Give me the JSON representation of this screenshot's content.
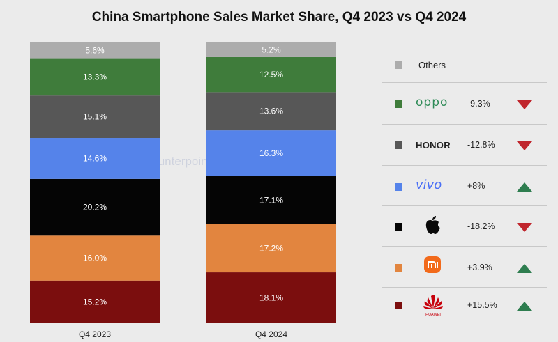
{
  "chart_data": {
    "type": "bar",
    "stacked": true,
    "title": "China Smartphone Sales Market Share, Q4 2023 vs Q4 2024",
    "categories": [
      "Q4 2023",
      "Q4 2024"
    ],
    "series": [
      {
        "name": "HUAWEI",
        "values": [
          15.2,
          18.1
        ],
        "labels": [
          "15.2%",
          "18.1%"
        ],
        "color": "#7b0e0e"
      },
      {
        "name": "Xiaomi",
        "values": [
          16.0,
          17.2
        ],
        "labels": [
          "16.0%",
          "17.2%"
        ],
        "color": "#e2853f"
      },
      {
        "name": "Apple",
        "values": [
          20.2,
          17.1
        ],
        "labels": [
          "20.2%",
          "17.1%"
        ],
        "color": "#050505"
      },
      {
        "name": "vivo",
        "values": [
          14.6,
          16.3
        ],
        "labels": [
          "14.6%",
          "16.3%"
        ],
        "color": "#5583ea"
      },
      {
        "name": "HONOR",
        "values": [
          15.1,
          13.6
        ],
        "labels": [
          "15.1%",
          "13.6%"
        ],
        "color": "#575757"
      },
      {
        "name": "OPPO",
        "values": [
          13.3,
          12.5
        ],
        "labels": [
          "13.3%",
          "12.5%"
        ],
        "color": "#3f7c3b"
      },
      {
        "name": "Others",
        "values": [
          5.6,
          5.2
        ],
        "labels": [
          "5.6%",
          "5.2%"
        ],
        "color": "#acacac"
      }
    ],
    "ylim": [
      0,
      100
    ],
    "grid": false,
    "legend_position": "right",
    "watermark": "Counterpoint"
  },
  "legend": [
    {
      "brand": "Others",
      "swatch_color": "#acacac",
      "change": "",
      "direction": ""
    },
    {
      "brand": "oppo",
      "swatch_color": "#3f7c3b",
      "change": "-9.3%",
      "direction": "down"
    },
    {
      "brand": "HONOR",
      "swatch_color": "#575757",
      "change": "-12.8%",
      "direction": "down"
    },
    {
      "brand": "vivo",
      "swatch_color": "#5583ea",
      "change": "+8%",
      "direction": "up"
    },
    {
      "brand": "apple-logo-icon",
      "swatch_color": "#050505",
      "change": "-18.2%",
      "direction": "down"
    },
    {
      "brand": "xiaomi-logo-icon",
      "swatch_color": "#e2853f",
      "change": "+3.9%",
      "direction": "up"
    },
    {
      "brand": "huawei-logo-icon",
      "logo_text": "HUAWEI",
      "swatch_color": "#7b0e0e",
      "change": "+15.5%",
      "direction": "up"
    }
  ],
  "colors": {
    "arrow_up": "#2e7d4f",
    "arrow_down": "#c0262d",
    "xiaomi_orange": "#f26a1b",
    "huawei_red": "#c7000b"
  }
}
